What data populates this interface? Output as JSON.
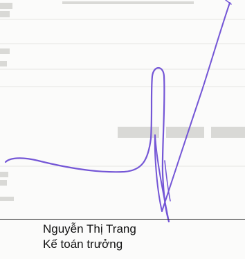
{
  "signatory": {
    "name": "Nguyễn Thị Trang",
    "title": "Kế toán trưởng"
  },
  "colors": {
    "ink": "#7456d6",
    "text": "#111111",
    "background": "#fbfbfa"
  }
}
